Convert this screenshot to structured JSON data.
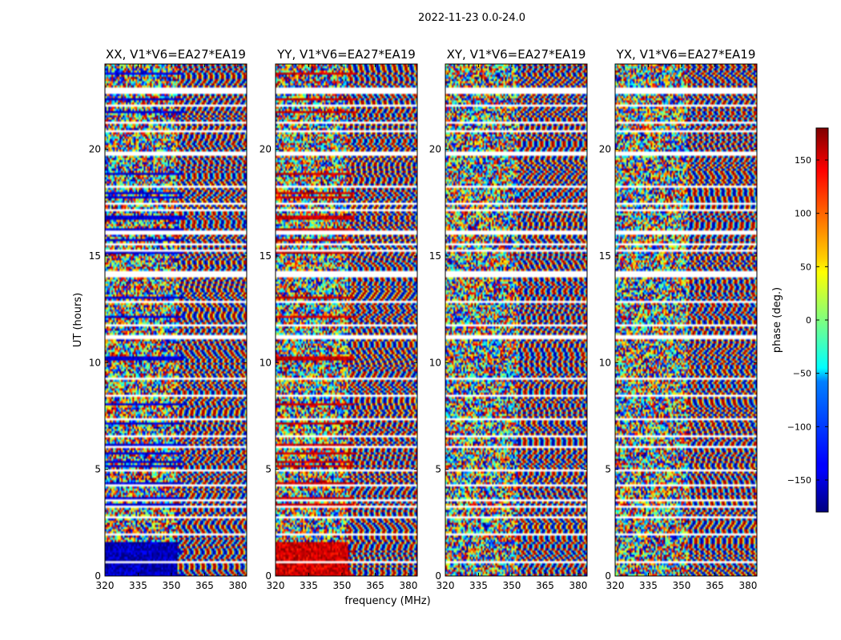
{
  "figure": {
    "suptitle": "2022-11-23 0.0-24.0"
  },
  "chart_data": {
    "type": "heatmap",
    "panels": [
      {
        "title": "XX, V1*V6=EA27*EA19",
        "pol": "XX"
      },
      {
        "title": "YY, V1*V6=EA27*EA19",
        "pol": "YY"
      },
      {
        "title": "XY, V1*V6=EA27*EA19",
        "pol": "XY"
      },
      {
        "title": "YX, V1*V6=EA27*EA19",
        "pol": "YX"
      }
    ],
    "xlabel": "frequency (MHz)",
    "ylabel": "UT (hours)",
    "x_ticks": [
      "320",
      "335",
      "350",
      "365",
      "380"
    ],
    "x_tick_values": [
      320,
      335,
      350,
      365,
      380
    ],
    "xlim": [
      320,
      384
    ],
    "y_ticks": [
      "0",
      "5",
      "10",
      "15",
      "20"
    ],
    "y_tick_values": [
      0,
      5,
      10,
      15,
      20
    ],
    "ylim": [
      0,
      24
    ],
    "colorbar": {
      "label": "phase (deg.)",
      "ticks": [
        "150",
        "100",
        "50",
        "0",
        "−50",
        "−100",
        "−150"
      ],
      "tick_values": [
        150,
        100,
        50,
        0,
        -50,
        -100,
        -150
      ],
      "range": [
        -180,
        180
      ],
      "colormap": "jet"
    }
  }
}
